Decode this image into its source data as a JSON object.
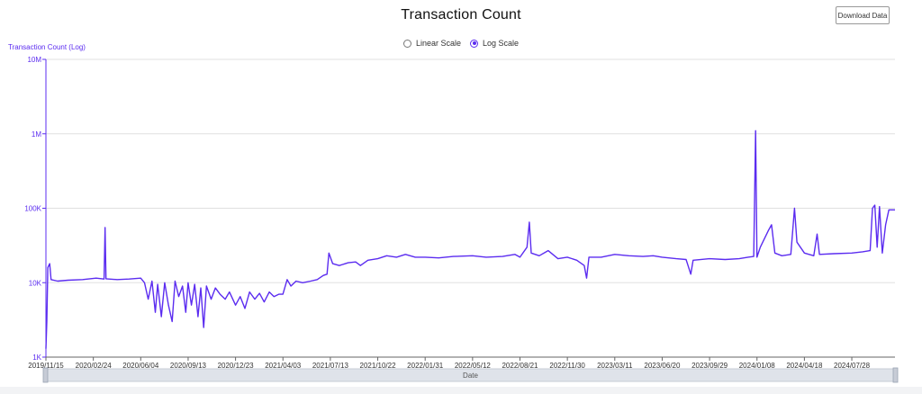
{
  "header": {
    "title": "Transaction Count",
    "download_label": "Download Data"
  },
  "scale_toggle": {
    "options": [
      {
        "label": "Linear Scale",
        "checked": false
      },
      {
        "label": "Log Scale",
        "checked": true
      }
    ]
  },
  "colors": {
    "series": "#5b2cf0",
    "grid": "#e0e0e0",
    "tick_text": "#333333",
    "slider_bg": "#dfe3ea"
  },
  "chart_data": {
    "type": "line",
    "title": "Transaction Count",
    "ylabel": "Transaction Count (Log)",
    "xlabel": "Date",
    "yscale": "log",
    "ylim": [
      1000,
      10000000
    ],
    "xlim": [
      "2019/11/15",
      "2024/10/28"
    ],
    "grid": "horizontal",
    "y_ticks": [
      {
        "value": 1000,
        "label": "1K"
      },
      {
        "value": 10000,
        "label": "10K"
      },
      {
        "value": 100000,
        "label": "100K"
      },
      {
        "value": 1000000,
        "label": "1M"
      },
      {
        "value": 10000000,
        "label": "10M"
      }
    ],
    "x_ticks": [
      "2019/11/15",
      "2020/02/24",
      "2020/06/04",
      "2020/09/13",
      "2020/12/23",
      "2021/04/03",
      "2021/07/13",
      "2021/10/22",
      "2022/01/31",
      "2022/05/12",
      "2022/08/21",
      "2022/11/30",
      "2023/03/11",
      "2023/06/20",
      "2023/09/29",
      "2024/01/08",
      "2024/04/18",
      "2024/07/28"
    ],
    "series": [
      {
        "points": [
          [
            "2019/11/15",
            1300
          ],
          [
            "2019/11/17",
            3000
          ],
          [
            "2019/11/19",
            16000
          ],
          [
            "2019/11/23",
            18000
          ],
          [
            "2019/11/26",
            11000
          ],
          [
            "2019/12/10",
            10500
          ],
          [
            "2020/01/01",
            10800
          ],
          [
            "2020/02/01",
            11000
          ],
          [
            "2020/03/01",
            11500
          ],
          [
            "2020/03/18",
            11200
          ],
          [
            "2020/03/20",
            55000
          ],
          [
            "2020/03/22",
            11300
          ],
          [
            "2020/04/15",
            11000
          ],
          [
            "2020/05/10",
            11200
          ],
          [
            "2020/06/04",
            11500
          ],
          [
            "2020/06/12",
            10000
          ],
          [
            "2020/06/20",
            6000
          ],
          [
            "2020/06/28",
            10500
          ],
          [
            "2020/07/05",
            4000
          ],
          [
            "2020/07/10",
            9500
          ],
          [
            "2020/07/18",
            3500
          ],
          [
            "2020/07/25",
            10000
          ],
          [
            "2020/08/02",
            5000
          ],
          [
            "2020/08/10",
            3000
          ],
          [
            "2020/08/16",
            10500
          ],
          [
            "2020/08/24",
            6500
          ],
          [
            "2020/09/01",
            9000
          ],
          [
            "2020/09/08",
            4000
          ],
          [
            "2020/09/13",
            10000
          ],
          [
            "2020/09/20",
            5000
          ],
          [
            "2020/09/27",
            9500
          ],
          [
            "2020/10/04",
            3500
          ],
          [
            "2020/10/10",
            8500
          ],
          [
            "2020/10/16",
            2500
          ],
          [
            "2020/10/22",
            9000
          ],
          [
            "2020/11/01",
            6000
          ],
          [
            "2020/11/10",
            8500
          ],
          [
            "2020/11/20",
            7000
          ],
          [
            "2020/12/01",
            6000
          ],
          [
            "2020/12/10",
            7500
          ],
          [
            "2020/12/23",
            5000
          ],
          [
            "2021/01/02",
            6500
          ],
          [
            "2021/01/12",
            4500
          ],
          [
            "2021/01/22",
            7500
          ],
          [
            "2021/02/02",
            6000
          ],
          [
            "2021/02/12",
            7200
          ],
          [
            "2021/02/22",
            5500
          ],
          [
            "2021/03/05",
            7500
          ],
          [
            "2021/03/15",
            6500
          ],
          [
            "2021/03/25",
            7000
          ],
          [
            "2021/04/03",
            7000
          ],
          [
            "2021/04/12",
            11000
          ],
          [
            "2021/04/20",
            9000
          ],
          [
            "2021/05/01",
            10500
          ],
          [
            "2021/05/15",
            10000
          ],
          [
            "2021/06/01",
            10500
          ],
          [
            "2021/06/15",
            11000
          ],
          [
            "2021/06/28",
            12500
          ],
          [
            "2021/07/06",
            13000
          ],
          [
            "2021/07/10",
            25000
          ],
          [
            "2021/07/18",
            18000
          ],
          [
            "2021/08/01",
            17000
          ],
          [
            "2021/08/20",
            18500
          ],
          [
            "2021/09/05",
            19000
          ],
          [
            "2021/09/15",
            17000
          ],
          [
            "2021/10/01",
            20000
          ],
          [
            "2021/10/22",
            21000
          ],
          [
            "2021/11/10",
            23000
          ],
          [
            "2021/12/01",
            22000
          ],
          [
            "2021/12/20",
            24000
          ],
          [
            "2022/01/10",
            22000
          ],
          [
            "2022/01/31",
            22000
          ],
          [
            "2022/03/01",
            21500
          ],
          [
            "2022/04/01",
            22500
          ],
          [
            "2022/05/12",
            23000
          ],
          [
            "2022/06/10",
            22000
          ],
          [
            "2022/07/15",
            22500
          ],
          [
            "2022/08/10",
            24000
          ],
          [
            "2022/08/21",
            22000
          ],
          [
            "2022/09/05",
            30000
          ],
          [
            "2022/09/10",
            65000
          ],
          [
            "2022/09/14",
            25000
          ],
          [
            "2022/10/01",
            23000
          ],
          [
            "2022/10/20",
            27000
          ],
          [
            "2022/11/10",
            21000
          ],
          [
            "2022/11/30",
            22000
          ],
          [
            "2022/12/20",
            20000
          ],
          [
            "2023/01/05",
            17000
          ],
          [
            "2023/01/10",
            11500
          ],
          [
            "2023/01/15",
            22000
          ],
          [
            "2023/02/10",
            22000
          ],
          [
            "2023/03/11",
            24000
          ],
          [
            "2023/04/10",
            23000
          ],
          [
            "2023/05/10",
            22500
          ],
          [
            "2023/06/01",
            23000
          ],
          [
            "2023/06/20",
            22000
          ],
          [
            "2023/07/20",
            21000
          ],
          [
            "2023/08/10",
            20500
          ],
          [
            "2023/08/20",
            13000
          ],
          [
            "2023/08/25",
            20000
          ],
          [
            "2023/09/29",
            21000
          ],
          [
            "2023/11/01",
            20500
          ],
          [
            "2023/12/01",
            21000
          ],
          [
            "2023/12/20",
            22000
          ],
          [
            "2024/01/01",
            22500
          ],
          [
            "2024/01/05",
            1100000
          ],
          [
            "2024/01/08",
            22000
          ],
          [
            "2024/01/15",
            30000
          ],
          [
            "2024/02/01",
            50000
          ],
          [
            "2024/02/08",
            60000
          ],
          [
            "2024/02/15",
            25000
          ],
          [
            "2024/03/01",
            23000
          ],
          [
            "2024/03/20",
            24000
          ],
          [
            "2024/03/28",
            100000
          ],
          [
            "2024/04/02",
            35000
          ],
          [
            "2024/04/18",
            25000
          ],
          [
            "2024/05/08",
            23000
          ],
          [
            "2024/05/15",
            45000
          ],
          [
            "2024/05/20",
            24000
          ],
          [
            "2024/06/20",
            24500
          ],
          [
            "2024/07/28",
            25000
          ],
          [
            "2024/08/20",
            26000
          ],
          [
            "2024/09/05",
            27000
          ],
          [
            "2024/09/10",
            100000
          ],
          [
            "2024/09/15",
            110000
          ],
          [
            "2024/09/20",
            30000
          ],
          [
            "2024/09/25",
            105000
          ],
          [
            "2024/10/01",
            25000
          ],
          [
            "2024/10/08",
            60000
          ],
          [
            "2024/10/15",
            95000
          ],
          [
            "2024/10/28",
            95000
          ]
        ]
      }
    ]
  }
}
